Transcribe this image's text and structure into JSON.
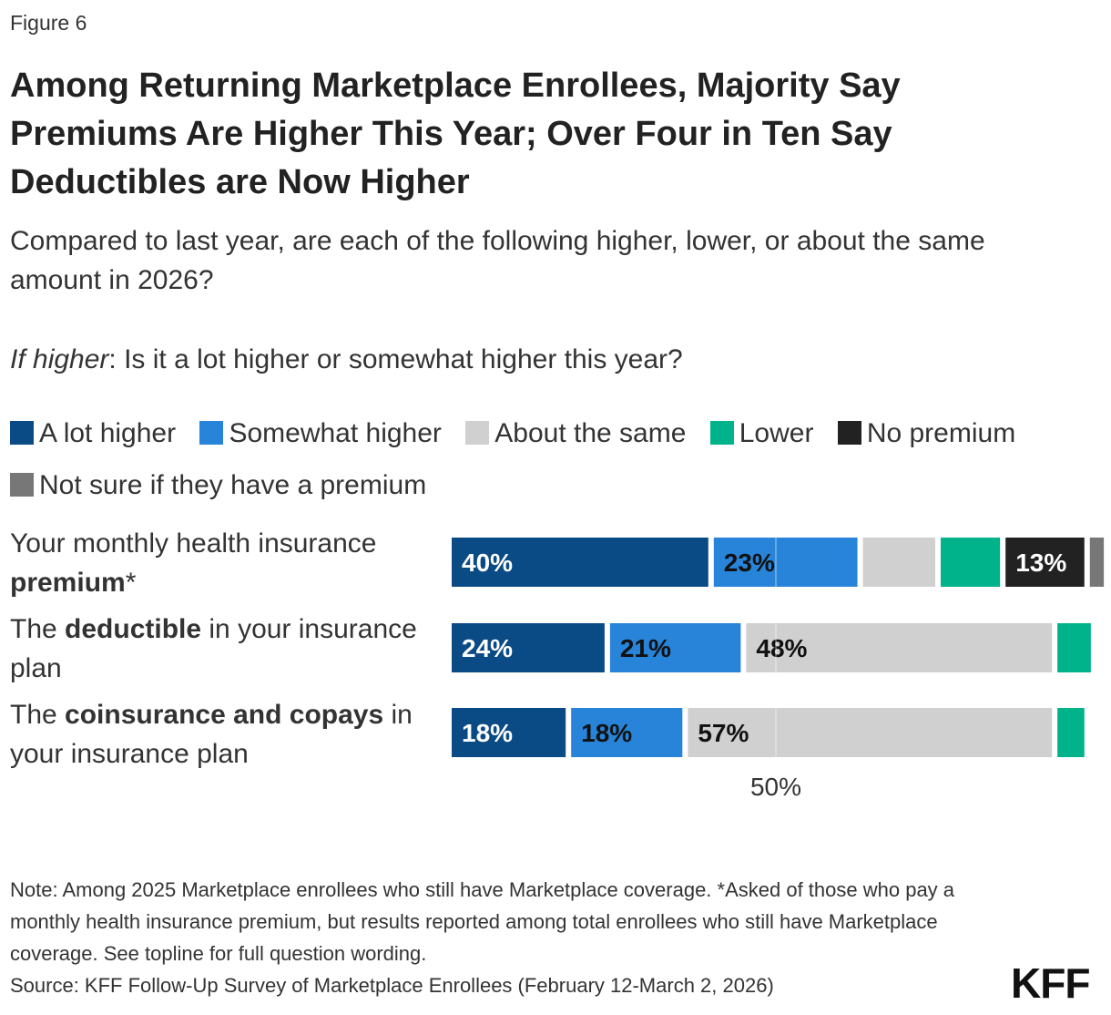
{
  "figure_label": "Figure 6",
  "title": "Among Returning Marketplace Enrollees, Majority Say Premiums Are Higher This Year; Over Four in Ten Say Deductibles are Now Higher",
  "subtitle": "Compared to last year, are each of the following higher, lower, or about the same amount in 2026?",
  "subnote": {
    "prefix": "If higher",
    "text": ": Is it a lot higher or somewhat higher this year?"
  },
  "rows": [
    {
      "pre": "Your monthly health insurance ",
      "bold": "premium",
      "post": "*"
    },
    {
      "pre": "The ",
      "bold": "deductible",
      "post": " in your insurance plan"
    },
    {
      "pre": "The ",
      "bold": "coinsurance and copays",
      "post": " in your insurance plan"
    }
  ],
  "note": "Note: Among 2025 Marketplace enrollees who still have Marketplace coverage. *Asked of those who pay a monthly health insurance premium, but results reported among total enrollees who still have Marketplace coverage. See topline for full question wording.",
  "source": "Source: KFF Follow-Up Survey of Marketplace Enrollees (February 12-March 2, 2026)",
  "logo": "KFF",
  "chart_data": {
    "type": "bar",
    "orientation": "horizontal",
    "stacked": true,
    "categories": [
      "Your monthly health insurance premium*",
      "The deductible in your insurance plan",
      "The coinsurance and copays in your insurance plan"
    ],
    "series": [
      {
        "name": "A lot higher",
        "color": "#0a4a85",
        "label_color": "#ffffff",
        "values": [
          40,
          24,
          18
        ]
      },
      {
        "name": "Somewhat higher",
        "color": "#2784d8",
        "label_color": "#111111",
        "values": [
          23,
          21,
          18
        ]
      },
      {
        "name": "About the same",
        "color": "#d0d0d0",
        "label_color": "#111111",
        "values": [
          12,
          48,
          57
        ]
      },
      {
        "name": "Lower",
        "color": "#00b38a",
        "label_color": "#111111",
        "values": [
          10,
          6,
          5
        ]
      },
      {
        "name": "No premium",
        "color": "#222222",
        "label_color": "#ffffff",
        "values": [
          13,
          0,
          0
        ]
      },
      {
        "name": "Not sure if they have a premium",
        "color": "#777777",
        "label_color": "#ffffff",
        "values": [
          3,
          0,
          0
        ]
      }
    ],
    "data_labels": [
      [
        "40%",
        "23%",
        "",
        "",
        "13%",
        ""
      ],
      [
        "24%",
        "21%",
        "48%",
        "",
        "",
        ""
      ],
      [
        "18%",
        "18%",
        "57%",
        "",
        "",
        ""
      ]
    ],
    "reference_line": {
      "value": 50,
      "label": "50%"
    },
    "xlim": [
      0,
      100
    ],
    "legend_position": "top",
    "grid": false
  }
}
